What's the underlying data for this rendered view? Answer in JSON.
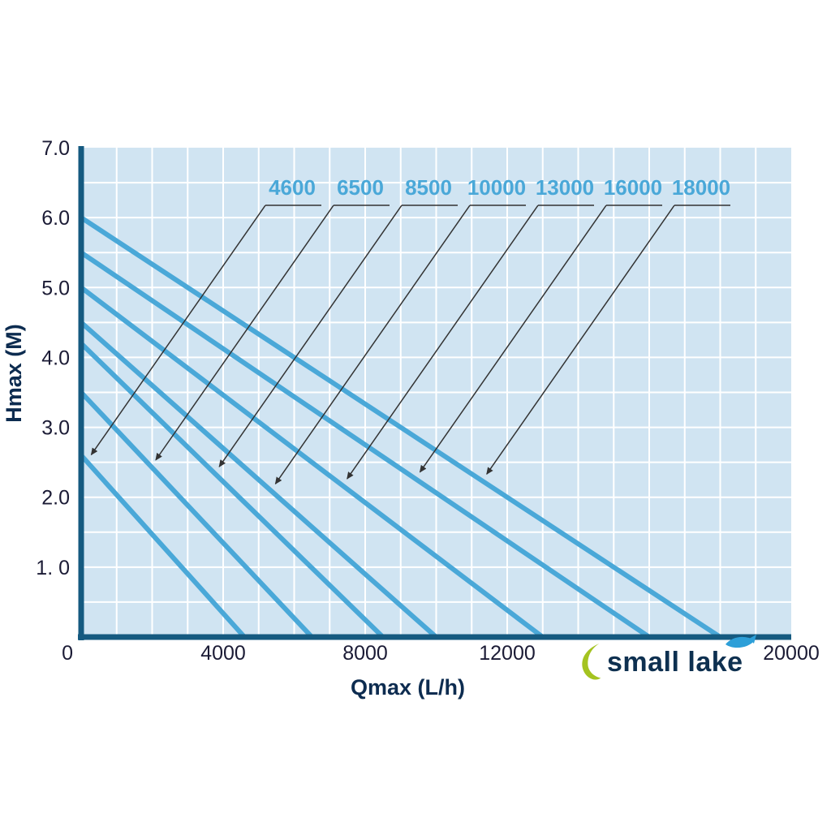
{
  "page": {
    "background": "#ffffff"
  },
  "chart_data": {
    "type": "line",
    "title": "",
    "xlabel": "Qmax (L/h)",
    "ylabel": "Hmax (M)",
    "xlim": [
      0,
      20000
    ],
    "ylim": [
      0,
      7.0
    ],
    "grid": true,
    "x_grid_step": 1000,
    "y_grid_step": 0.5,
    "x_ticks": [
      {
        "value": 0,
        "label": "0"
      },
      {
        "value": 4000,
        "label": "4000"
      },
      {
        "value": 8000,
        "label": "8000"
      },
      {
        "value": 12000,
        "label": "12000"
      },
      {
        "value": 16000,
        "label": ""
      },
      {
        "value": 20000,
        "label": "20000"
      }
    ],
    "y_ticks": [
      {
        "value": 1,
        "label": "1. 0"
      },
      {
        "value": 2,
        "label": "2.0"
      },
      {
        "value": 3,
        "label": "3.0"
      },
      {
        "value": 4,
        "label": "4.0"
      },
      {
        "value": 5,
        "label": "5.0"
      },
      {
        "value": 6,
        "label": "6.0"
      },
      {
        "value": 7,
        "label": "7.0"
      }
    ],
    "legend_position": "pointer-labels-top",
    "series": [
      {
        "name": "4600",
        "points": [
          [
            0,
            2.6
          ],
          [
            4600,
            0
          ]
        ]
      },
      {
        "name": "6500",
        "points": [
          [
            0,
            3.5
          ],
          [
            6500,
            0
          ]
        ]
      },
      {
        "name": "8500",
        "points": [
          [
            0,
            4.2
          ],
          [
            8500,
            0
          ]
        ]
      },
      {
        "name": "10000",
        "points": [
          [
            0,
            4.5
          ],
          [
            10000,
            0
          ]
        ]
      },
      {
        "name": "13000",
        "points": [
          [
            0,
            5.0
          ],
          [
            13000,
            0
          ]
        ]
      },
      {
        "name": "16000",
        "points": [
          [
            0,
            5.5
          ],
          [
            16000,
            0
          ]
        ]
      },
      {
        "name": "18000",
        "points": [
          [
            0,
            6.0
          ],
          [
            18000,
            0
          ]
        ]
      }
    ]
  },
  "logo": {
    "text": "small lake"
  },
  "colors": {
    "plot_bg": "#d0e4f2",
    "grid": "#ffffff",
    "curve": "#4aa8d8",
    "axis": "#155a80",
    "tick_text": "#1b1b35",
    "axis_title": "#0d2c50",
    "curve_label": "#4aa8d8",
    "arrow": "#333333",
    "logo_text": "#0e3050",
    "logo_green": "#a4c320",
    "logo_blue": "#2d9fd8"
  }
}
